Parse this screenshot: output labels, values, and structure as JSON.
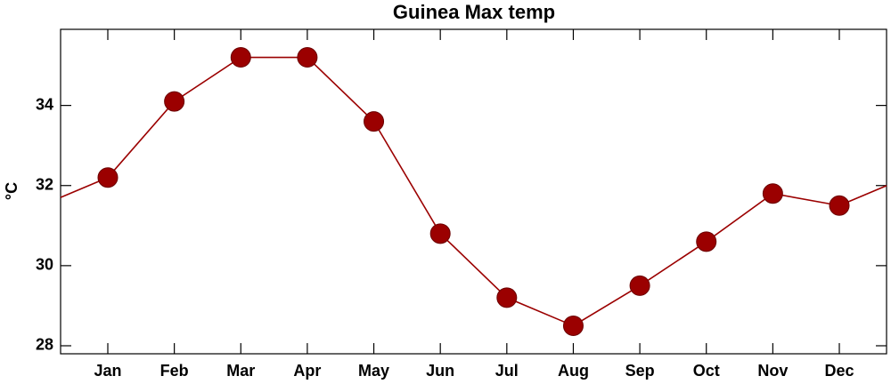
{
  "chart_data": {
    "type": "line",
    "title": "Guinea Max temp",
    "y_label": "°C",
    "categories": [
      "Jan",
      "Feb",
      "Mar",
      "Apr",
      "May",
      "Jun",
      "Jul",
      "Aug",
      "Sep",
      "Oct",
      "Nov",
      "Dec"
    ],
    "values": [
      32.2,
      34.1,
      35.2,
      35.2,
      33.6,
      30.8,
      29.2,
      28.5,
      29.5,
      30.6,
      31.8,
      31.5
    ],
    "color": "#9b0000",
    "ylim": [
      27.8,
      35.9
    ],
    "yticks": [
      28,
      30,
      32,
      34
    ],
    "wrap": true
  }
}
